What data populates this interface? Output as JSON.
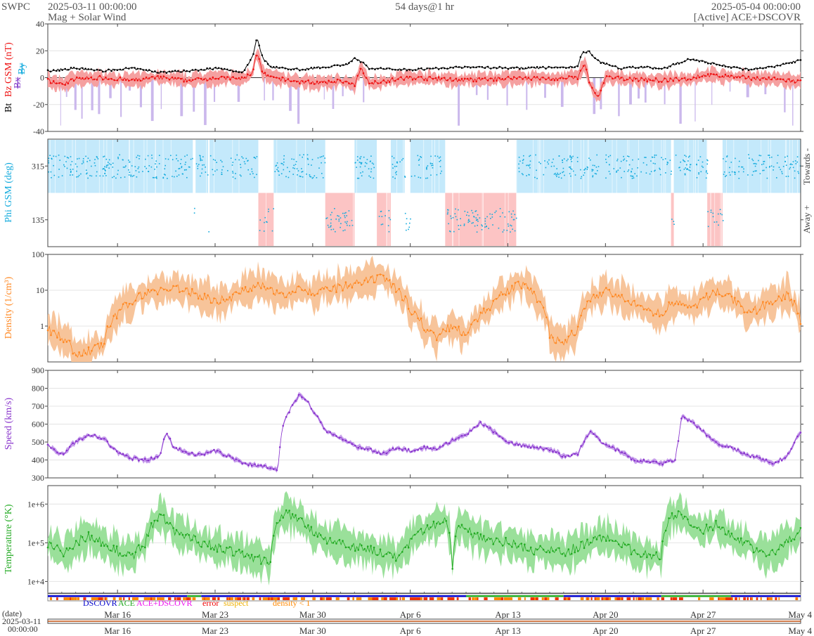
{
  "header": {
    "org": "SWPC",
    "start": "2025-03-11 00:00:00",
    "subtitle": "Mag + Solar Wind",
    "span": "54 days@1 hr",
    "end": "2025-05-04 00:00:00",
    "source": "[Active] ACE+DSCOVR"
  },
  "footer": {
    "date_label": "(date)",
    "date_value": "2025-03-11",
    "time_value": "00:00:00"
  },
  "legend": [
    {
      "label": "DSCOVR",
      "color": "#0000cc"
    },
    {
      "label": "ACE",
      "color": "#22aa22"
    },
    {
      "label": "ACE+DSCOVR",
      "color": "#ee11ee"
    },
    {
      "label": "error",
      "color": "#ee0000"
    },
    {
      "label": "suspect",
      "color": "#eeb000"
    },
    {
      "label": "density < 1",
      "color": "#ff8800"
    }
  ],
  "colors": {
    "bt": "#000000",
    "bz": "#ee1111",
    "bz_band": "#f5a0a0",
    "bx": "#8844cc",
    "bx_band": "#cbb8ec",
    "by": "#11aadd",
    "phi_toward": "#c4e9fb",
    "phi_away": "#fcc4c4",
    "density": "#ff8822",
    "density_band": "#f7c49a",
    "speed": "#8833cc",
    "speed_band": "#c8a0ec",
    "temperature": "#22aa22",
    "temperature_band": "#9ae09a"
  },
  "chart_data": [
    {
      "type": "line",
      "panel": "mag",
      "ylabel_parts": [
        "Bt",
        "Bz GSM (nT)",
        "Bx",
        "By"
      ],
      "ylim": [
        -40,
        40
      ],
      "yticks": [
        "40",
        "20",
        "0",
        "-20",
        "-40"
      ],
      "x_day_span": [
        0,
        54
      ],
      "series": [
        {
          "name": "Bt",
          "values": [
            [
              0,
              5
            ],
            [
              2,
              7
            ],
            [
              4,
              5
            ],
            [
              6,
              7
            ],
            [
              8,
              4
            ],
            [
              10,
              5
            ],
            [
              12,
              7
            ],
            [
              14,
              4
            ],
            [
              14.7,
              16
            ],
            [
              15,
              30
            ],
            [
              15.4,
              15
            ],
            [
              16,
              8
            ],
            [
              18,
              6
            ],
            [
              20,
              8
            ],
            [
              21.5,
              10
            ],
            [
              22,
              14
            ],
            [
              22.5,
              12
            ],
            [
              23,
              7
            ],
            [
              26,
              6
            ],
            [
              30,
              8
            ],
            [
              34,
              7
            ],
            [
              38,
              8
            ],
            [
              38.3,
              18
            ],
            [
              38.8,
              20
            ],
            [
              39.5,
              12
            ],
            [
              41,
              7
            ],
            [
              43,
              8
            ],
            [
              44,
              6
            ],
            [
              45,
              10
            ],
            [
              46,
              14
            ],
            [
              48,
              10
            ],
            [
              50,
              6
            ],
            [
              52,
              8
            ],
            [
              54,
              13
            ]
          ]
        },
        {
          "name": "Bz GSM",
          "values": [
            [
              0,
              -2
            ],
            [
              1,
              -5
            ],
            [
              2,
              -1
            ],
            [
              4,
              0
            ],
            [
              6,
              -2
            ],
            [
              8,
              0
            ],
            [
              10,
              -2
            ],
            [
              12,
              0
            ],
            [
              14,
              -1
            ],
            [
              14.7,
              4
            ],
            [
              15,
              20
            ],
            [
              15.4,
              3
            ],
            [
              16,
              0
            ],
            [
              18,
              -3
            ],
            [
              20,
              -4
            ],
            [
              21,
              -2
            ],
            [
              22,
              -6
            ],
            [
              22.5,
              8
            ],
            [
              23,
              -4
            ],
            [
              26,
              0
            ],
            [
              30,
              -2
            ],
            [
              34,
              0
            ],
            [
              36,
              -1
            ],
            [
              38,
              0
            ],
            [
              38.5,
              10
            ],
            [
              39,
              -8
            ],
            [
              39.5,
              -15
            ],
            [
              40,
              0
            ],
            [
              44,
              -2
            ],
            [
              46,
              -1
            ],
            [
              47,
              2
            ],
            [
              50,
              0
            ],
            [
              52,
              -1
            ],
            [
              54,
              -3
            ]
          ]
        }
      ]
    },
    {
      "type": "scatter",
      "panel": "phi",
      "ylabel": "Phi GSM (deg)",
      "ylim": [
        45,
        405
      ],
      "yticks": [
        "315",
        "135"
      ],
      "right_labels": [
        "Towards -",
        "Away +"
      ],
      "toward_intervals": [
        [
          0,
          10.4
        ],
        [
          10.6,
          11.5
        ],
        [
          11.6,
          15.1
        ],
        [
          16.2,
          19.9
        ],
        [
          22,
          23.6
        ],
        [
          24.6,
          25.6
        ],
        [
          26,
          28.5
        ],
        [
          33.6,
          44.7
        ],
        [
          44.9,
          47.3
        ],
        [
          48.4,
          54
        ]
      ],
      "away_intervals": [
        [
          15.1,
          16.2
        ],
        [
          19.9,
          22
        ],
        [
          23.6,
          24.6
        ],
        [
          28.5,
          33.6
        ],
        [
          44.7,
          44.9
        ],
        [
          47.3,
          48.4
        ]
      ]
    },
    {
      "type": "line",
      "panel": "density",
      "ylabel": "Density (1/cm³)",
      "scale": "log",
      "ylim": [
        0.1,
        100
      ],
      "yticks": [
        "100",
        "10",
        "1"
      ],
      "values": [
        [
          0,
          0.8
        ],
        [
          1,
          0.5
        ],
        [
          2,
          0.15
        ],
        [
          3,
          0.2
        ],
        [
          4,
          0.3
        ],
        [
          5,
          2
        ],
        [
          6,
          5
        ],
        [
          7,
          8
        ],
        [
          8,
          10
        ],
        [
          9,
          12
        ],
        [
          10,
          9
        ],
        [
          11,
          7
        ],
        [
          12,
          5
        ],
        [
          13,
          6
        ],
        [
          14,
          9
        ],
        [
          15,
          15
        ],
        [
          16,
          9
        ],
        [
          17,
          8
        ],
        [
          18,
          12
        ],
        [
          19,
          8
        ],
        [
          20,
          10
        ],
        [
          21,
          12
        ],
        [
          22,
          14
        ],
        [
          23,
          18
        ],
        [
          24,
          22
        ],
        [
          25,
          10
        ],
        [
          26,
          3
        ],
        [
          27,
          0.8
        ],
        [
          28,
          0.5
        ],
        [
          29,
          1.0
        ],
        [
          30,
          0.6
        ],
        [
          31,
          2
        ],
        [
          32,
          4
        ],
        [
          33,
          10
        ],
        [
          34,
          15
        ],
        [
          35,
          6
        ],
        [
          36,
          0.5
        ],
        [
          37,
          0.3
        ],
        [
          38,
          0.8
        ],
        [
          39,
          5
        ],
        [
          40,
          10
        ],
        [
          41,
          6
        ],
        [
          42,
          4
        ],
        [
          43,
          3
        ],
        [
          44,
          2
        ],
        [
          45,
          5
        ],
        [
          46,
          3
        ],
        [
          47,
          5
        ],
        [
          48,
          10
        ],
        [
          49,
          6
        ],
        [
          50,
          2
        ],
        [
          51,
          3
        ],
        [
          52,
          5
        ],
        [
          53,
          7
        ],
        [
          54,
          1.5
        ]
      ]
    },
    {
      "type": "line",
      "panel": "speed",
      "ylabel": "Speed (km/s)",
      "ylim": [
        300,
        900
      ],
      "yticks": [
        "900",
        "800",
        "700",
        "600",
        "500",
        "400",
        "300"
      ],
      "values": [
        [
          0,
          480
        ],
        [
          1,
          430
        ],
        [
          2,
          500
        ],
        [
          3,
          540
        ],
        [
          4,
          520
        ],
        [
          5,
          440
        ],
        [
          6,
          410
        ],
        [
          7,
          400
        ],
        [
          8,
          420
        ],
        [
          8.5,
          560
        ],
        [
          9,
          470
        ],
        [
          10,
          440
        ],
        [
          11,
          430
        ],
        [
          12,
          450
        ],
        [
          13,
          420
        ],
        [
          14,
          380
        ],
        [
          15,
          370
        ],
        [
          16,
          360
        ],
        [
          16.5,
          350
        ],
        [
          16.8,
          580
        ],
        [
          17,
          620
        ],
        [
          17.5,
          700
        ],
        [
          18,
          760
        ],
        [
          18.5,
          740
        ],
        [
          19,
          680
        ],
        [
          19.5,
          620
        ],
        [
          20,
          560
        ],
        [
          21,
          520
        ],
        [
          22,
          480
        ],
        [
          23,
          460
        ],
        [
          24,
          430
        ],
        [
          25,
          470
        ],
        [
          26,
          450
        ],
        [
          27,
          470
        ],
        [
          28,
          460
        ],
        [
          29,
          510
        ],
        [
          30,
          540
        ],
        [
          31,
          610
        ],
        [
          32,
          560
        ],
        [
          33,
          500
        ],
        [
          34,
          480
        ],
        [
          35,
          470
        ],
        [
          36,
          460
        ],
        [
          37,
          420
        ],
        [
          38,
          430
        ],
        [
          38.5,
          510
        ],
        [
          39,
          560
        ],
        [
          40,
          480
        ],
        [
          41,
          450
        ],
        [
          42,
          400
        ],
        [
          43,
          390
        ],
        [
          44,
          380
        ],
        [
          45,
          400
        ],
        [
          45.5,
          650
        ],
        [
          46,
          620
        ],
        [
          47,
          560
        ],
        [
          48,
          490
        ],
        [
          49,
          470
        ],
        [
          50,
          430
        ],
        [
          51,
          410
        ],
        [
          52,
          380
        ],
        [
          53,
          420
        ],
        [
          54,
          560
        ]
      ]
    },
    {
      "type": "line",
      "panel": "temperature",
      "ylabel": "Temperature (°K)",
      "scale": "log",
      "ylim": [
        5000,
        3000000
      ],
      "yticks": [
        "1e+6",
        "1e+5",
        "1e+4"
      ],
      "values": [
        [
          0,
          100000.0
        ],
        [
          1,
          50000.0
        ],
        [
          2,
          100000.0
        ],
        [
          3,
          150000.0
        ],
        [
          4,
          100000.0
        ],
        [
          5,
          60000.0
        ],
        [
          6,
          40000.0
        ],
        [
          7,
          100000.0
        ],
        [
          7.5,
          300000.0
        ],
        [
          8,
          500000.0
        ],
        [
          9,
          200000.0
        ],
        [
          10,
          150000.0
        ],
        [
          11,
          100000.0
        ],
        [
          12,
          80000.0
        ],
        [
          13,
          60000.0
        ],
        [
          14,
          50000.0
        ],
        [
          15,
          40000.0
        ],
        [
          16,
          30000.0
        ],
        [
          17,
          600000.0
        ],
        [
          18,
          400000.0
        ],
        [
          19,
          200000.0
        ],
        [
          20,
          120000.0
        ],
        [
          21,
          100000.0
        ],
        [
          22,
          80000.0
        ],
        [
          23,
          70000.0
        ],
        [
          24,
          50000.0
        ],
        [
          25,
          40000.0
        ],
        [
          26,
          100000.0
        ],
        [
          27,
          200000.0
        ],
        [
          28,
          300000.0
        ],
        [
          28.5,
          400000.0
        ],
        [
          29,
          5000.0
        ],
        [
          29.5,
          300000.0
        ],
        [
          30,
          200000.0
        ],
        [
          31,
          150000.0
        ],
        [
          32,
          120000.0
        ],
        [
          33,
          100000.0
        ],
        [
          34,
          80000.0
        ],
        [
          35,
          60000.0
        ],
        [
          36,
          70000.0
        ],
        [
          37,
          50000.0
        ],
        [
          38,
          80000.0
        ],
        [
          39,
          100000.0
        ],
        [
          40,
          150000.0
        ],
        [
          41,
          100000.0
        ],
        [
          42,
          60000.0
        ],
        [
          43,
          50000.0
        ],
        [
          44,
          40000.0
        ],
        [
          45,
          600000.0
        ],
        [
          46,
          300000.0
        ],
        [
          47,
          200000.0
        ],
        [
          48,
          300000.0
        ],
        [
          49,
          150000.0
        ],
        [
          50,
          100000.0
        ],
        [
          51,
          60000.0
        ],
        [
          52,
          50000.0
        ],
        [
          53,
          100000.0
        ],
        [
          54,
          200000.0
        ]
      ]
    }
  ],
  "x_axis": {
    "ticks": [
      {
        "day": 5,
        "label": "Mar 16"
      },
      {
        "day": 12,
        "label": "Mar 23"
      },
      {
        "day": 19,
        "label": "Mar 30"
      },
      {
        "day": 26,
        "label": "Apr 6"
      },
      {
        "day": 33,
        "label": "Apr 13"
      },
      {
        "day": 40,
        "label": "Apr 20"
      },
      {
        "day": 47,
        "label": "Apr 27"
      },
      {
        "day": 54,
        "label": "May 4"
      }
    ]
  },
  "status_bar": {
    "segments": [
      {
        "from": 0,
        "to": 10,
        "color": "#0000cc"
      },
      {
        "from": 10,
        "to": 11,
        "color": "#22aa22"
      },
      {
        "from": 11,
        "to": 30,
        "color": "#0000cc"
      },
      {
        "from": 30,
        "to": 37,
        "color": "#22aa22"
      },
      {
        "from": 37,
        "to": 44,
        "color": "#0000cc"
      },
      {
        "from": 44,
        "to": 49,
        "color": "#22aa22"
      },
      {
        "from": 49,
        "to": 54,
        "color": "#0000cc"
      }
    ]
  }
}
